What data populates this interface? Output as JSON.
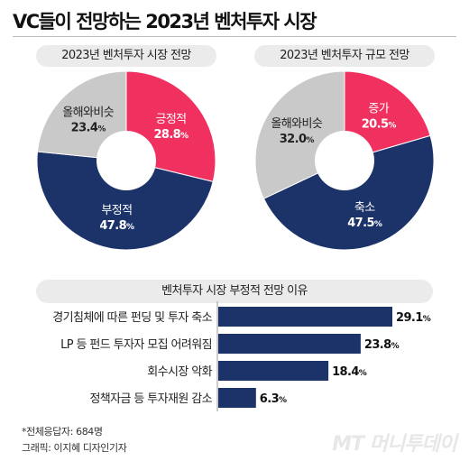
{
  "title": "VC들이 전망하는 2023년 벤처투자 시장",
  "footnote": "*전체응답자: 684명",
  "credit": "그래픽: 이지혜 디자인기자",
  "brand": "MT 머니투데이",
  "colors": {
    "positive": "#f0305f",
    "negative": "#1b3369",
    "neutral": "#c9c9c9",
    "bar": "#1b3369"
  },
  "chart_data": [
    {
      "type": "pie",
      "title": "2023년 벤처투자 시장 전망",
      "unit": "%",
      "slices": [
        {
          "label": "긍정적",
          "value": 28.8,
          "color": "#f0305f"
        },
        {
          "label": "부정적",
          "value": 47.8,
          "color": "#1b3369"
        },
        {
          "label": "올해와비슷",
          "value": 23.4,
          "color": "#c9c9c9"
        }
      ]
    },
    {
      "type": "pie",
      "title": "2023년 벤처투자 규모 전망",
      "unit": "%",
      "slices": [
        {
          "label": "증가",
          "value": 20.5,
          "color": "#f0305f"
        },
        {
          "label": "축소",
          "value": 47.5,
          "color": "#1b3369"
        },
        {
          "label": "올해와비슷",
          "value": 32.0,
          "color": "#c9c9c9"
        }
      ]
    },
    {
      "type": "bar",
      "orientation": "horizontal",
      "title": "벤처투자 시장 부정적 전망 이유",
      "unit": "%",
      "categories": [
        "경기침체에 따른 펀딩 및 투자 축소",
        "LP 등 펀드 투자자 모집 어려워짐",
        "회수시장 악화",
        "정책자금 등 투자재원 감소"
      ],
      "values": [
        29.1,
        23.8,
        18.4,
        6.3
      ]
    }
  ]
}
